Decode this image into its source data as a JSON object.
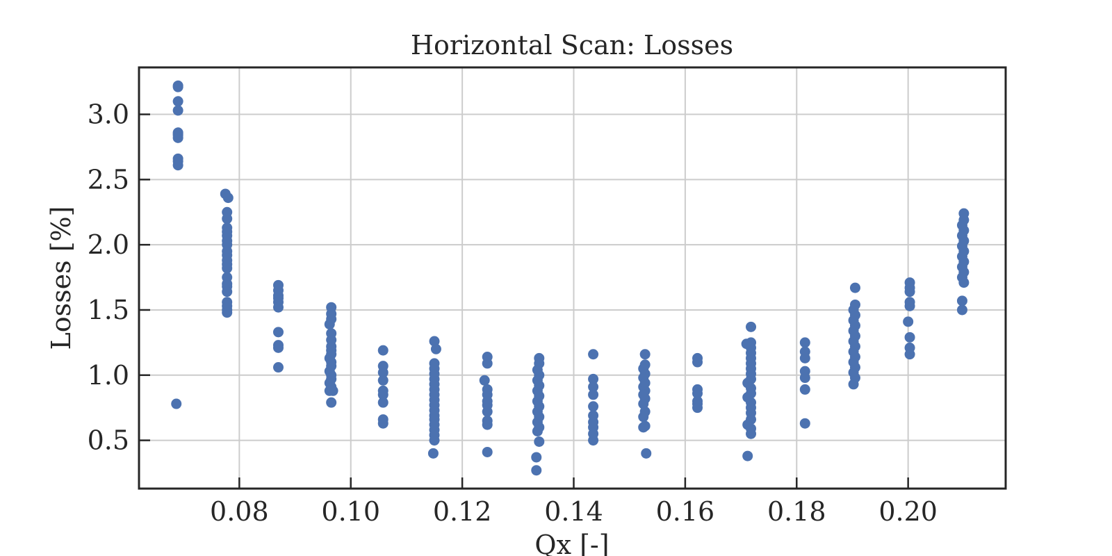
{
  "chart_data": {
    "type": "scatter",
    "title": "Horizontal Scan: Losses",
    "xlabel": "Qx [-]",
    "ylabel": "Losses [%]",
    "xlim": [
      0.062,
      0.2175
    ],
    "ylim": [
      0.13,
      3.36
    ],
    "x_ticks": [
      0.08,
      0.1,
      0.12,
      0.14,
      0.16,
      0.18,
      0.2
    ],
    "x_tick_labels": [
      "0.08",
      "0.10",
      "0.12",
      "0.14",
      "0.16",
      "0.18",
      "0.20"
    ],
    "y_ticks": [
      0.5,
      1.0,
      1.5,
      2.0,
      2.5,
      3.0
    ],
    "y_tick_labels": [
      "0.5",
      "1.0",
      "1.5",
      "2.0",
      "2.5",
      "3.0"
    ],
    "grid": true,
    "marker_color": "#4c72b0",
    "series": [
      {
        "points": [
          [
            0.069,
            3.22
          ],
          [
            0.069,
            3.21
          ],
          [
            0.069,
            3.1
          ],
          [
            0.069,
            3.03
          ],
          [
            0.069,
            2.86
          ],
          [
            0.069,
            2.85
          ],
          [
            0.069,
            2.84
          ],
          [
            0.069,
            2.82
          ],
          [
            0.069,
            2.66
          ],
          [
            0.069,
            2.64
          ],
          [
            0.069,
            2.61
          ],
          [
            0.0687,
            0.78
          ],
          [
            0.0775,
            2.39
          ],
          [
            0.078,
            2.36
          ],
          [
            0.0778,
            2.25
          ],
          [
            0.0778,
            2.2
          ],
          [
            0.0778,
            2.13
          ],
          [
            0.0778,
            2.1
          ],
          [
            0.0778,
            2.07
          ],
          [
            0.0778,
            2.03
          ],
          [
            0.0778,
            2.0
          ],
          [
            0.0778,
            1.95
          ],
          [
            0.0778,
            1.92
          ],
          [
            0.0778,
            1.88
          ],
          [
            0.0778,
            1.85
          ],
          [
            0.0778,
            1.82
          ],
          [
            0.0778,
            1.75
          ],
          [
            0.0778,
            1.7
          ],
          [
            0.0778,
            1.68
          ],
          [
            0.0778,
            1.64
          ],
          [
            0.0778,
            1.56
          ],
          [
            0.0778,
            1.53
          ],
          [
            0.0778,
            1.5
          ],
          [
            0.0778,
            1.48
          ],
          [
            0.087,
            1.69
          ],
          [
            0.087,
            1.65
          ],
          [
            0.087,
            1.61
          ],
          [
            0.087,
            1.59
          ],
          [
            0.087,
            1.56
          ],
          [
            0.087,
            1.52
          ],
          [
            0.087,
            1.33
          ],
          [
            0.087,
            1.23
          ],
          [
            0.087,
            1.21
          ],
          [
            0.087,
            1.06
          ],
          [
            0.0965,
            1.52
          ],
          [
            0.0965,
            1.47
          ],
          [
            0.0965,
            1.43
          ],
          [
            0.0962,
            1.39
          ],
          [
            0.0965,
            1.32
          ],
          [
            0.0965,
            1.27
          ],
          [
            0.0965,
            1.22
          ],
          [
            0.0965,
            1.19
          ],
          [
            0.0965,
            1.16
          ],
          [
            0.0962,
            1.13
          ],
          [
            0.0965,
            1.1
          ],
          [
            0.0965,
            1.07
          ],
          [
            0.0962,
            1.03
          ],
          [
            0.0965,
            1.0
          ],
          [
            0.0965,
            0.97
          ],
          [
            0.0962,
            0.94
          ],
          [
            0.0965,
            0.91
          ],
          [
            0.0962,
            0.88
          ],
          [
            0.0968,
            0.88
          ],
          [
            0.0965,
            0.79
          ],
          [
            0.1058,
            1.19
          ],
          [
            0.1058,
            1.07
          ],
          [
            0.1058,
            1.02
          ],
          [
            0.1058,
            0.96
          ],
          [
            0.1058,
            0.88
          ],
          [
            0.1058,
            0.85
          ],
          [
            0.1058,
            0.79
          ],
          [
            0.1058,
            0.66
          ],
          [
            0.1058,
            0.63
          ],
          [
            0.115,
            1.26
          ],
          [
            0.1153,
            1.2
          ],
          [
            0.115,
            1.09
          ],
          [
            0.115,
            1.05
          ],
          [
            0.115,
            1.01
          ],
          [
            0.115,
            0.97
          ],
          [
            0.115,
            0.93
          ],
          [
            0.115,
            0.89
          ],
          [
            0.115,
            0.85
          ],
          [
            0.115,
            0.81
          ],
          [
            0.115,
            0.77
          ],
          [
            0.115,
            0.73
          ],
          [
            0.115,
            0.69
          ],
          [
            0.115,
            0.66
          ],
          [
            0.115,
            0.62
          ],
          [
            0.115,
            0.58
          ],
          [
            0.115,
            0.54
          ],
          [
            0.115,
            0.5
          ],
          [
            0.1148,
            0.4
          ],
          [
            0.124,
            0.96
          ],
          [
            0.1245,
            1.14
          ],
          [
            0.1245,
            1.09
          ],
          [
            0.1245,
            0.89
          ],
          [
            0.1245,
            0.85
          ],
          [
            0.1245,
            0.8
          ],
          [
            0.1245,
            0.77
          ],
          [
            0.1245,
            0.72
          ],
          [
            0.1245,
            0.65
          ],
          [
            0.1245,
            0.62
          ],
          [
            0.1245,
            0.41
          ],
          [
            0.1338,
            1.13
          ],
          [
            0.1338,
            1.09
          ],
          [
            0.1335,
            1.04
          ],
          [
            0.1338,
            1.0
          ],
          [
            0.1335,
            0.96
          ],
          [
            0.1338,
            0.92
          ],
          [
            0.1335,
            0.88
          ],
          [
            0.1338,
            0.84
          ],
          [
            0.1335,
            0.8
          ],
          [
            0.1338,
            0.76
          ],
          [
            0.1335,
            0.72
          ],
          [
            0.1338,
            0.68
          ],
          [
            0.1335,
            0.64
          ],
          [
            0.1338,
            0.6
          ],
          [
            0.1335,
            0.57
          ],
          [
            0.1338,
            0.49
          ],
          [
            0.1333,
            0.37
          ],
          [
            0.1333,
            0.27
          ],
          [
            0.1435,
            1.16
          ],
          [
            0.1435,
            0.97
          ],
          [
            0.1435,
            0.91
          ],
          [
            0.1435,
            0.85
          ],
          [
            0.1435,
            0.76
          ],
          [
            0.1435,
            0.69
          ],
          [
            0.1435,
            0.64
          ],
          [
            0.1435,
            0.6
          ],
          [
            0.1435,
            0.55
          ],
          [
            0.1435,
            0.5
          ],
          [
            0.1528,
            1.16
          ],
          [
            0.1528,
            1.08
          ],
          [
            0.1525,
            1.05
          ],
          [
            0.1528,
            1.01
          ],
          [
            0.1525,
            0.98
          ],
          [
            0.1528,
            0.94
          ],
          [
            0.1525,
            0.91
          ],
          [
            0.1528,
            0.88
          ],
          [
            0.1525,
            0.85
          ],
          [
            0.1528,
            0.82
          ],
          [
            0.1525,
            0.78
          ],
          [
            0.1528,
            0.72
          ],
          [
            0.1525,
            0.68
          ],
          [
            0.1528,
            0.61
          ],
          [
            0.1525,
            0.6
          ],
          [
            0.153,
            0.4
          ],
          [
            0.1622,
            1.13
          ],
          [
            0.1622,
            1.1
          ],
          [
            0.1622,
            0.89
          ],
          [
            0.1622,
            0.86
          ],
          [
            0.1622,
            0.8
          ],
          [
            0.1622,
            0.78
          ],
          [
            0.1622,
            0.75
          ],
          [
            0.171,
            1.24
          ],
          [
            0.1718,
            1.37
          ],
          [
            0.1718,
            1.25
          ],
          [
            0.1718,
            1.21
          ],
          [
            0.1718,
            1.17
          ],
          [
            0.1718,
            1.13
          ],
          [
            0.1718,
            1.09
          ],
          [
            0.1718,
            1.05
          ],
          [
            0.1718,
            1.01
          ],
          [
            0.1718,
            0.97
          ],
          [
            0.1712,
            0.94
          ],
          [
            0.1718,
            0.9
          ],
          [
            0.1718,
            0.86
          ],
          [
            0.1712,
            0.83
          ],
          [
            0.1718,
            0.79
          ],
          [
            0.1718,
            0.75
          ],
          [
            0.1718,
            0.71
          ],
          [
            0.1718,
            0.66
          ],
          [
            0.1712,
            0.62
          ],
          [
            0.1718,
            0.59
          ],
          [
            0.1718,
            0.55
          ],
          [
            0.1712,
            0.38
          ],
          [
            0.1815,
            1.25
          ],
          [
            0.1815,
            1.18
          ],
          [
            0.1815,
            1.13
          ],
          [
            0.1815,
            1.03
          ],
          [
            0.1815,
            0.98
          ],
          [
            0.1815,
            0.89
          ],
          [
            0.1815,
            0.63
          ],
          [
            0.1905,
            1.67
          ],
          [
            0.1905,
            1.54
          ],
          [
            0.1902,
            1.5
          ],
          [
            0.1905,
            1.46
          ],
          [
            0.1902,
            1.42
          ],
          [
            0.1905,
            1.38
          ],
          [
            0.1902,
            1.34
          ],
          [
            0.1905,
            1.3
          ],
          [
            0.1902,
            1.26
          ],
          [
            0.1905,
            1.22
          ],
          [
            0.1902,
            1.18
          ],
          [
            0.1905,
            1.14
          ],
          [
            0.1902,
            1.1
          ],
          [
            0.1905,
            1.06
          ],
          [
            0.1902,
            1.02
          ],
          [
            0.1905,
            0.98
          ],
          [
            0.1902,
            0.93
          ],
          [
            0.2003,
            1.71
          ],
          [
            0.2003,
            1.67
          ],
          [
            0.2003,
            1.64
          ],
          [
            0.2003,
            1.56
          ],
          [
            0.2003,
            1.53
          ],
          [
            0.2,
            1.41
          ],
          [
            0.2003,
            1.29
          ],
          [
            0.2003,
            1.21
          ],
          [
            0.2003,
            1.16
          ],
          [
            0.21,
            2.24
          ],
          [
            0.21,
            2.19
          ],
          [
            0.2097,
            2.15
          ],
          [
            0.21,
            2.11
          ],
          [
            0.2097,
            2.07
          ],
          [
            0.21,
            2.03
          ],
          [
            0.2097,
            1.99
          ],
          [
            0.21,
            1.95
          ],
          [
            0.2097,
            1.91
          ],
          [
            0.21,
            1.87
          ],
          [
            0.2097,
            1.83
          ],
          [
            0.21,
            1.79
          ],
          [
            0.2097,
            1.75
          ],
          [
            0.21,
            1.71
          ],
          [
            0.2097,
            1.57
          ],
          [
            0.2097,
            1.5
          ]
        ]
      }
    ]
  }
}
